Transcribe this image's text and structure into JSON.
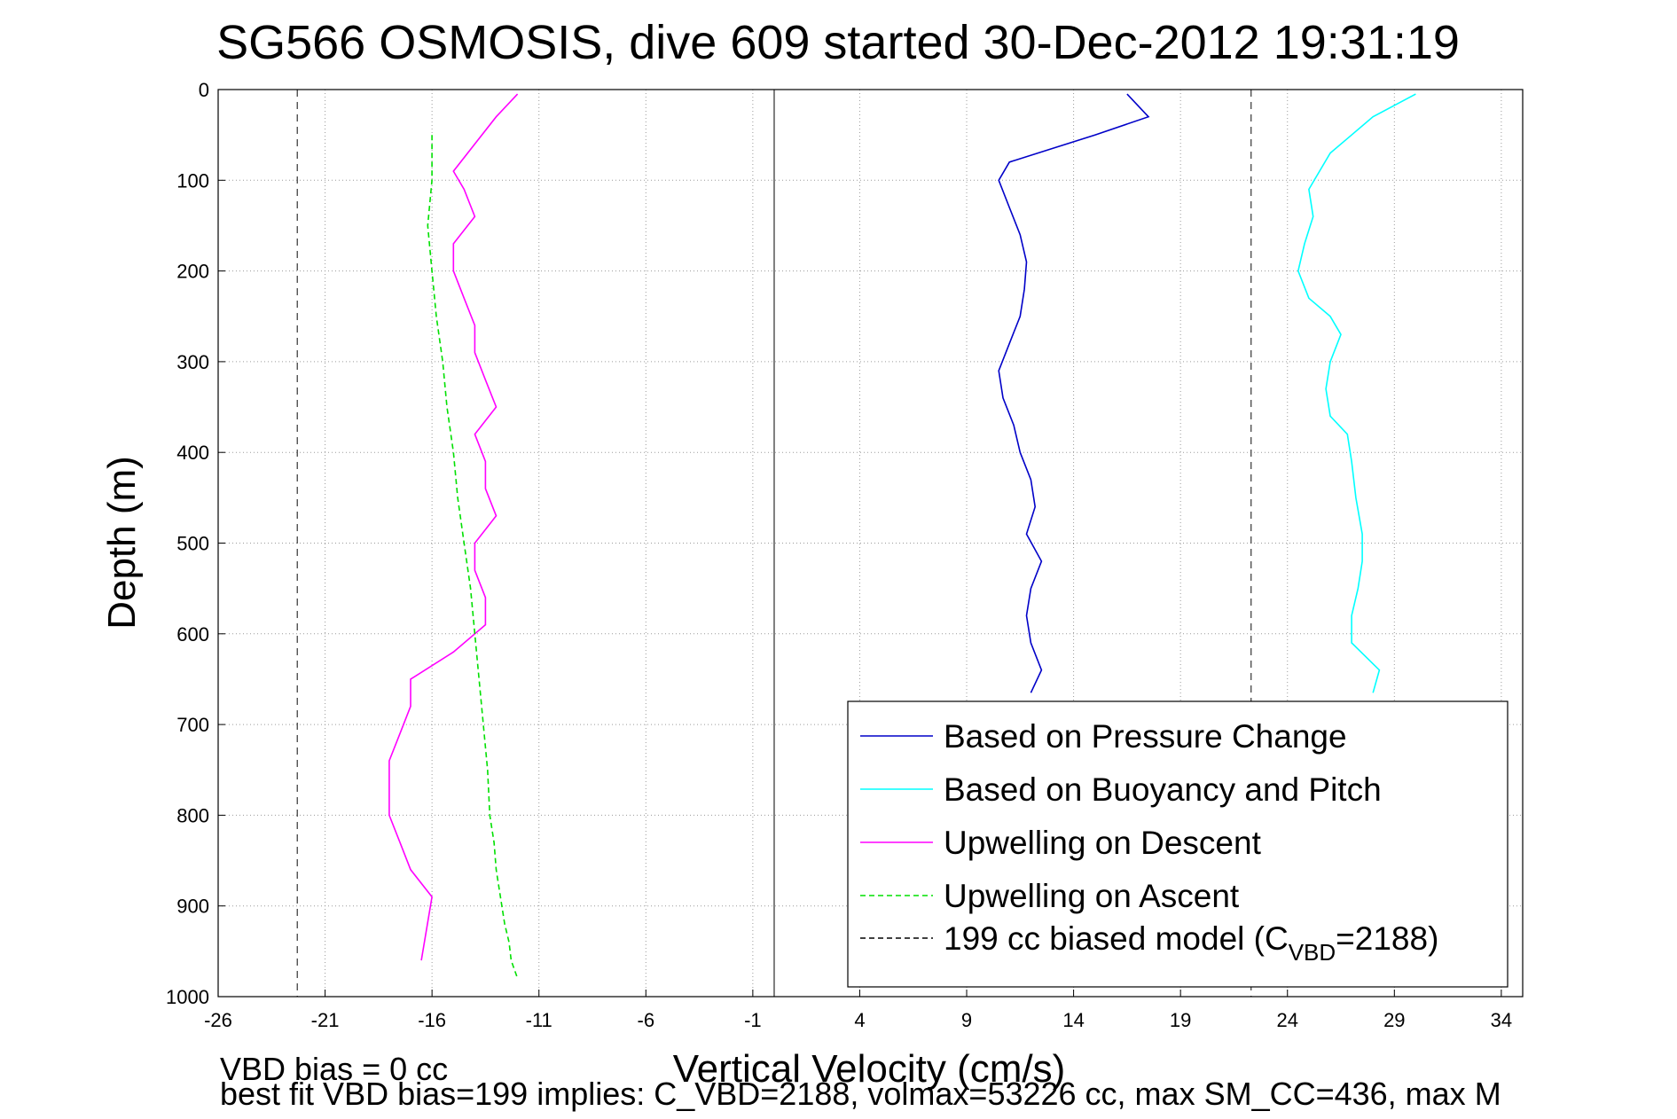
{
  "chart_data": {
    "type": "line",
    "title": "SG566 OSMOSIS, dive 609 started 30-Dec-2012 19:31:19",
    "xlabel": "Vertical Velocity (cm/s)",
    "ylabel": "Depth (m)",
    "xlim": [
      -26,
      35
    ],
    "ylim": [
      0,
      1000
    ],
    "y_reversed": true,
    "xticks": [
      -26,
      -21,
      -16,
      -11,
      -6,
      -1,
      4,
      9,
      14,
      19,
      24,
      29,
      34
    ],
    "yticks": [
      0,
      100,
      200,
      300,
      400,
      500,
      600,
      700,
      800,
      900,
      1000
    ],
    "grid": true,
    "legend_position": "bottom-right",
    "reference_lines": {
      "zero_velocity_x": 0,
      "model_bias_x": [
        -22.3,
        22.3
      ]
    },
    "legend": [
      {
        "label": "Based on Pressure Change",
        "color": "#0000c8",
        "dash": "solid"
      },
      {
        "label": "Based on Buoyancy and Pitch",
        "color": "#00ffff",
        "dash": "solid"
      },
      {
        "label": "Upwelling on Descent",
        "color": "#ff00ff",
        "dash": "solid"
      },
      {
        "label": "Upwelling on Ascent",
        "color": "#00e000",
        "dash": "dashed"
      },
      {
        "label": "199 cc biased model (C",
        "sub": "VBD",
        "suffix": "=2188)",
        "color": "#000000",
        "dash": "dashed"
      }
    ],
    "series": [
      {
        "name": "Based on Pressure Change",
        "color": "#0000c8",
        "x": [
          16.5,
          17.5,
          15,
          13,
          11,
          10.5,
          11,
          11.5,
          11.8,
          11.7,
          11.5,
          11,
          10.5,
          10.7,
          11.2,
          11.5,
          12,
          12.2,
          11.8,
          12.5,
          12,
          11.8,
          12,
          12.5,
          12
        ],
        "y": [
          5,
          30,
          50,
          65,
          80,
          100,
          130,
          160,
          190,
          220,
          250,
          280,
          310,
          340,
          370,
          400,
          430,
          460,
          490,
          520,
          550,
          580,
          610,
          640,
          665
        ]
      },
      {
        "name": "Based on Buoyancy and Pitch",
        "color": "#00ffff",
        "x": [
          30,
          28,
          27,
          26,
          25.5,
          25,
          25.2,
          24.8,
          24.5,
          25,
          26,
          26.5,
          26,
          25.8,
          26,
          26.8,
          27,
          27.2,
          27.5,
          27.5,
          27.3,
          27,
          27,
          28.3,
          28
        ],
        "y": [
          5,
          30,
          50,
          70,
          90,
          110,
          140,
          170,
          200,
          230,
          250,
          270,
          300,
          330,
          360,
          380,
          410,
          450,
          490,
          520,
          550,
          580,
          610,
          640,
          665
        ]
      },
      {
        "name": "Upwelling on Descent",
        "color": "#ff00ff",
        "x": [
          -12,
          -13,
          -14,
          -15,
          -14.5,
          -14,
          -15,
          -15,
          -14.5,
          -14,
          -14,
          -13.5,
          -13,
          -14,
          -13.5,
          -13.5,
          -13,
          -14,
          -14,
          -13.5,
          -13.5,
          -15,
          -17,
          -17,
          -17.5,
          -18,
          -18,
          -18,
          -17.5,
          -17,
          -16,
          -16.5
        ],
        "y": [
          5,
          30,
          60,
          90,
          110,
          140,
          170,
          200,
          230,
          260,
          290,
          320,
          350,
          380,
          410,
          440,
          470,
          500,
          530,
          560,
          590,
          620,
          650,
          680,
          710,
          740,
          770,
          800,
          830,
          860,
          890,
          960
        ]
      },
      {
        "name": "Upwelling on Ascent",
        "color": "#00e000",
        "x": [
          -16,
          -16,
          -16.2,
          -16,
          -15.8,
          -15.5,
          -15.3,
          -15,
          -14.8,
          -14.5,
          -14.2,
          -14,
          -13.8,
          -13.6,
          -13.4,
          -13.3,
          -13.1,
          -13,
          -12.8,
          -12.6,
          -12.4,
          -12.3,
          -12
        ],
        "y": [
          50,
          100,
          150,
          200,
          250,
          300,
          350,
          400,
          450,
          500,
          550,
          600,
          650,
          700,
          750,
          800,
          830,
          860,
          890,
          920,
          940,
          960,
          980
        ]
      }
    ],
    "annotations": [
      "VBD bias = 0 cc",
      "best fit VBD bias=199 implies: C_VBD=2188, volmax=53226 cc, max SM_CC=436, max M"
    ]
  }
}
